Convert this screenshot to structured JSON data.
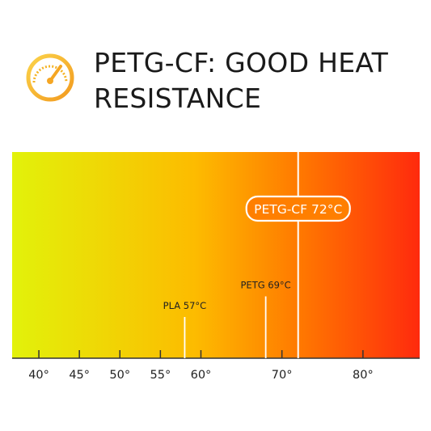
{
  "header": {
    "title": "PETG-CF: GOOD HEAT RESISTANCE",
    "icon": "gauge-icon",
    "accent_color": "#f5a623"
  },
  "chart_data": {
    "type": "bar",
    "title": "",
    "xlabel": "",
    "ylabel": "",
    "xlim": [
      36.7,
      87
    ],
    "ticks": [
      {
        "value": 40,
        "label": "40°"
      },
      {
        "value": 45,
        "label": "45°"
      },
      {
        "value": 50,
        "label": "50°"
      },
      {
        "value": 55,
        "label": "55°"
      },
      {
        "value": 60,
        "label": "60°"
      },
      {
        "value": 70,
        "label": "70°"
      },
      {
        "value": 80,
        "label": "80°"
      }
    ],
    "gradient_colors": [
      "#e2f20a",
      "#fdbb00",
      "#ff7a00",
      "#ff2a0d"
    ],
    "markers": [
      {
        "value": 57,
        "marker_x": 58,
        "label": "PLA 57°C",
        "height": 0.2,
        "highlight": false
      },
      {
        "value": 69,
        "marker_x": 68,
        "label": "PETG 69°C",
        "height": 0.3,
        "highlight": false
      },
      {
        "value": 72,
        "marker_x": 72,
        "label": "PETG-CF 72°C",
        "height": 1.05,
        "highlight": true
      }
    ]
  }
}
